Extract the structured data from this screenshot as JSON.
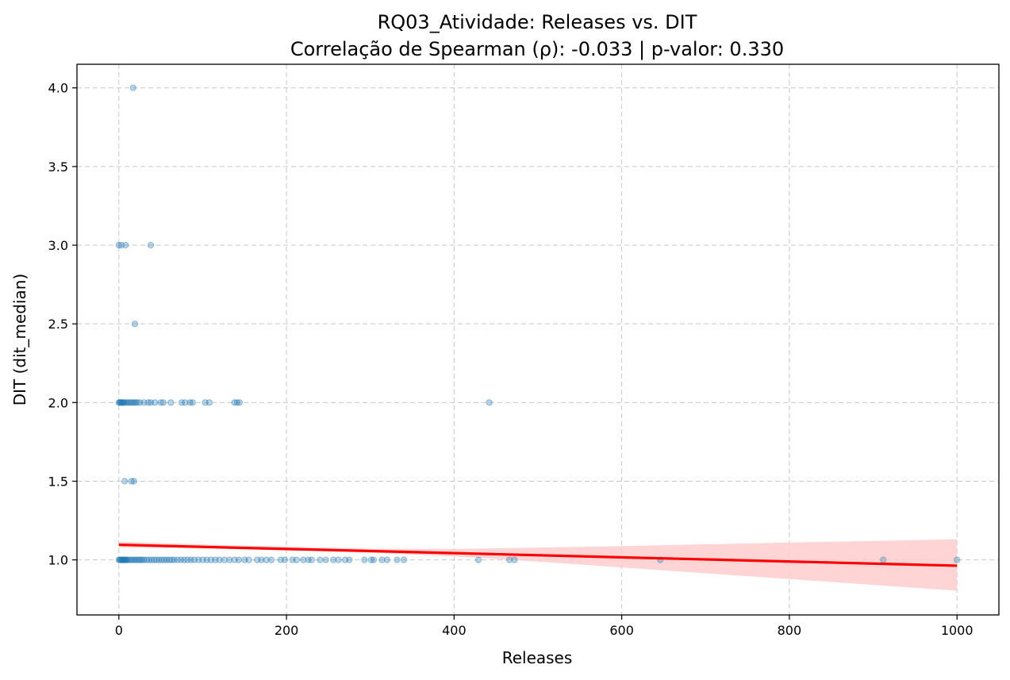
{
  "chart_data": {
    "type": "scatter",
    "title": "RQ03_Atividade: Releases vs. DIT",
    "subtitle": "Correlação de Spearman (ρ): -0.033 | p-valor: 0.330",
    "xlabel": "Releases",
    "ylabel": "DIT (dit_median)",
    "xlim": [
      -50,
      1050
    ],
    "ylim": [
      0.65,
      4.15
    ],
    "x_ticks": [
      0,
      200,
      400,
      600,
      800,
      1000
    ],
    "y_ticks": [
      1.0,
      1.5,
      2.0,
      2.5,
      3.0,
      3.5,
      4.0
    ],
    "x_tick_labels": [
      "0",
      "200",
      "400",
      "600",
      "800",
      "1000"
    ],
    "y_tick_labels": [
      "1.0",
      "1.5",
      "2.0",
      "2.5",
      "3.0",
      "3.5",
      "4.0"
    ],
    "grid": true,
    "point_color": "#1f77b4",
    "regression_color": "#ff0000",
    "ci_color": "#ffcccc",
    "series": [
      {
        "points": [
          {
            "x": 17,
            "y": 4.0
          },
          {
            "x": 0,
            "y": 3.0
          },
          {
            "x": 3,
            "y": 3.0
          },
          {
            "x": 8,
            "y": 3.0
          },
          {
            "x": 38,
            "y": 3.0
          },
          {
            "x": 19,
            "y": 2.5
          },
          {
            "x": 0,
            "y": 2.0
          },
          {
            "x": 1,
            "y": 2.0
          },
          {
            "x": 2,
            "y": 2.0
          },
          {
            "x": 3,
            "y": 2.0
          },
          {
            "x": 4,
            "y": 2.0
          },
          {
            "x": 5,
            "y": 2.0
          },
          {
            "x": 6,
            "y": 2.0
          },
          {
            "x": 8,
            "y": 2.0
          },
          {
            "x": 10,
            "y": 2.0
          },
          {
            "x": 12,
            "y": 2.0
          },
          {
            "x": 14,
            "y": 2.0
          },
          {
            "x": 16,
            "y": 2.0
          },
          {
            "x": 18,
            "y": 2.0
          },
          {
            "x": 20,
            "y": 2.0
          },
          {
            "x": 22,
            "y": 2.0
          },
          {
            "x": 25,
            "y": 2.0
          },
          {
            "x": 30,
            "y": 2.0
          },
          {
            "x": 35,
            "y": 2.0
          },
          {
            "x": 38,
            "y": 2.0
          },
          {
            "x": 43,
            "y": 2.0
          },
          {
            "x": 50,
            "y": 2.0
          },
          {
            "x": 53,
            "y": 2.0
          },
          {
            "x": 62,
            "y": 2.0
          },
          {
            "x": 75,
            "y": 2.0
          },
          {
            "x": 79,
            "y": 2.0
          },
          {
            "x": 85,
            "y": 2.0
          },
          {
            "x": 88,
            "y": 2.0
          },
          {
            "x": 103,
            "y": 2.0
          },
          {
            "x": 108,
            "y": 2.0
          },
          {
            "x": 138,
            "y": 2.0
          },
          {
            "x": 141,
            "y": 2.0
          },
          {
            "x": 144,
            "y": 2.0
          },
          {
            "x": 442,
            "y": 2.0
          },
          {
            "x": 7,
            "y": 1.5
          },
          {
            "x": 15,
            "y": 1.5
          },
          {
            "x": 18,
            "y": 1.5
          },
          {
            "x": 0,
            "y": 1.0
          },
          {
            "x": 1,
            "y": 1.0
          },
          {
            "x": 2,
            "y": 1.0
          },
          {
            "x": 3,
            "y": 1.0
          },
          {
            "x": 4,
            "y": 1.0
          },
          {
            "x": 5,
            "y": 1.0
          },
          {
            "x": 6,
            "y": 1.0
          },
          {
            "x": 7,
            "y": 1.0
          },
          {
            "x": 8,
            "y": 1.0
          },
          {
            "x": 9,
            "y": 1.0
          },
          {
            "x": 10,
            "y": 1.0
          },
          {
            "x": 12,
            "y": 1.0
          },
          {
            "x": 14,
            "y": 1.0
          },
          {
            "x": 16,
            "y": 1.0
          },
          {
            "x": 18,
            "y": 1.0
          },
          {
            "x": 20,
            "y": 1.0
          },
          {
            "x": 22,
            "y": 1.0
          },
          {
            "x": 24,
            "y": 1.0
          },
          {
            "x": 26,
            "y": 1.0
          },
          {
            "x": 28,
            "y": 1.0
          },
          {
            "x": 30,
            "y": 1.0
          },
          {
            "x": 33,
            "y": 1.0
          },
          {
            "x": 36,
            "y": 1.0
          },
          {
            "x": 39,
            "y": 1.0
          },
          {
            "x": 42,
            "y": 1.0
          },
          {
            "x": 45,
            "y": 1.0
          },
          {
            "x": 48,
            "y": 1.0
          },
          {
            "x": 51,
            "y": 1.0
          },
          {
            "x": 54,
            "y": 1.0
          },
          {
            "x": 57,
            "y": 1.0
          },
          {
            "x": 60,
            "y": 1.0
          },
          {
            "x": 63,
            "y": 1.0
          },
          {
            "x": 66,
            "y": 1.0
          },
          {
            "x": 70,
            "y": 1.0
          },
          {
            "x": 74,
            "y": 1.0
          },
          {
            "x": 78,
            "y": 1.0
          },
          {
            "x": 82,
            "y": 1.0
          },
          {
            "x": 86,
            "y": 1.0
          },
          {
            "x": 90,
            "y": 1.0
          },
          {
            "x": 95,
            "y": 1.0
          },
          {
            "x": 100,
            "y": 1.0
          },
          {
            "x": 105,
            "y": 1.0
          },
          {
            "x": 110,
            "y": 1.0
          },
          {
            "x": 115,
            "y": 1.0
          },
          {
            "x": 120,
            "y": 1.0
          },
          {
            "x": 126,
            "y": 1.0
          },
          {
            "x": 132,
            "y": 1.0
          },
          {
            "x": 138,
            "y": 1.0
          },
          {
            "x": 143,
            "y": 1.0
          },
          {
            "x": 150,
            "y": 1.0
          },
          {
            "x": 155,
            "y": 1.0
          },
          {
            "x": 165,
            "y": 1.0
          },
          {
            "x": 170,
            "y": 1.0
          },
          {
            "x": 176,
            "y": 1.0
          },
          {
            "x": 182,
            "y": 1.0
          },
          {
            "x": 193,
            "y": 1.0
          },
          {
            "x": 198,
            "y": 1.0
          },
          {
            "x": 207,
            "y": 1.0
          },
          {
            "x": 212,
            "y": 1.0
          },
          {
            "x": 220,
            "y": 1.0
          },
          {
            "x": 226,
            "y": 1.0
          },
          {
            "x": 230,
            "y": 1.0
          },
          {
            "x": 240,
            "y": 1.0
          },
          {
            "x": 247,
            "y": 1.0
          },
          {
            "x": 256,
            "y": 1.0
          },
          {
            "x": 262,
            "y": 1.0
          },
          {
            "x": 270,
            "y": 1.0
          },
          {
            "x": 275,
            "y": 1.0
          },
          {
            "x": 293,
            "y": 1.0
          },
          {
            "x": 301,
            "y": 1.0
          },
          {
            "x": 304,
            "y": 1.0
          },
          {
            "x": 314,
            "y": 1.0
          },
          {
            "x": 320,
            "y": 1.0
          },
          {
            "x": 332,
            "y": 1.0
          },
          {
            "x": 340,
            "y": 1.0
          },
          {
            "x": 429,
            "y": 1.0
          },
          {
            "x": 466,
            "y": 1.0
          },
          {
            "x": 472,
            "y": 1.0
          },
          {
            "x": 646,
            "y": 1.0
          },
          {
            "x": 912,
            "y": 1.0
          },
          {
            "x": 1000,
            "y": 1.0
          }
        ]
      }
    ],
    "regression": {
      "x": [
        0,
        1000
      ],
      "y": [
        1.096,
        0.963
      ]
    },
    "confidence_band": {
      "x": [
        0,
        100,
        200,
        300,
        400,
        500,
        600,
        700,
        800,
        900,
        1000
      ],
      "upper": [
        1.115,
        1.098,
        1.084,
        1.071,
        1.069,
        1.078,
        1.088,
        1.099,
        1.11,
        1.12,
        1.131
      ],
      "lower": [
        1.078,
        1.072,
        1.06,
        1.046,
        1.022,
        0.989,
        0.952,
        0.915,
        0.878,
        0.841,
        0.804
      ]
    }
  }
}
